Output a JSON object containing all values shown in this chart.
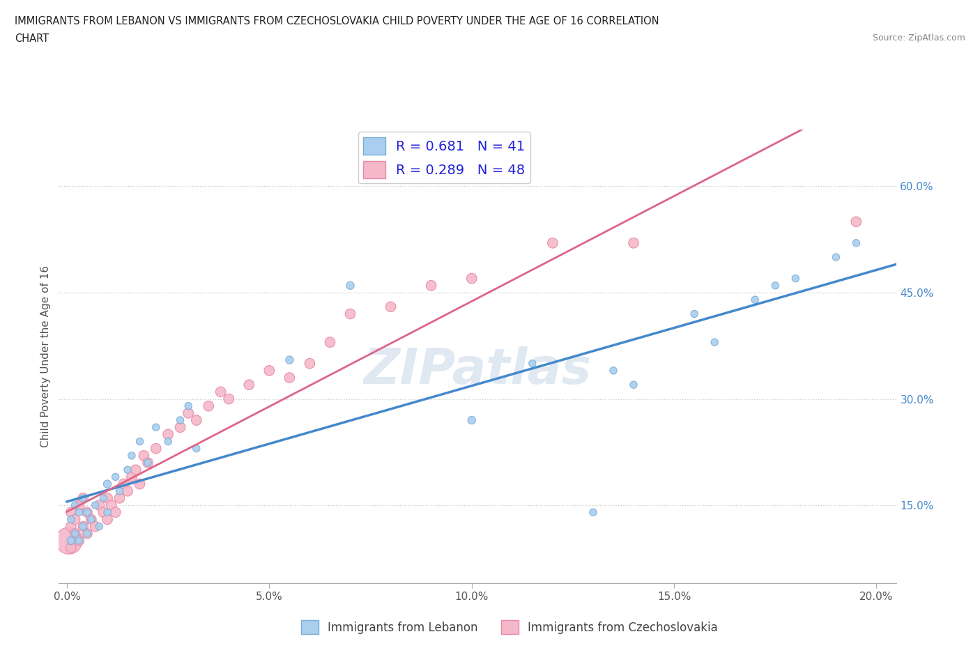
{
  "title_line1": "IMMIGRANTS FROM LEBANON VS IMMIGRANTS FROM CZECHOSLOVAKIA CHILD POVERTY UNDER THE AGE OF 16 CORRELATION",
  "title_line2": "CHART",
  "source": "Source: ZipAtlas.com",
  "ylabel": "Child Poverty Under the Age of 16",
  "r_lebanon": 0.681,
  "n_lebanon": 41,
  "r_czech": 0.289,
  "n_czech": 48,
  "color_lebanon": "#aacfee",
  "color_czech": "#f5b8c8",
  "edge_lebanon": "#7aadd6",
  "edge_czech": "#e888a8",
  "trend_lebanon": "#4488cc",
  "trend_czech": "#dd6688",
  "trend_dashed": "#ccbbbb",
  "legend_label_lebanon": "Immigrants from Lebanon",
  "legend_label_czech": "Immigrants from Czechoslovakia",
  "xlim": [
    -0.002,
    0.205
  ],
  "ylim": [
    0.04,
    0.68
  ],
  "xticks": [
    0.0,
    0.05,
    0.1,
    0.15,
    0.2
  ],
  "xticklabels": [
    "0.0%",
    "5.0%",
    "10.0%",
    "15.0%",
    "20.0%"
  ],
  "yticks_right": [
    0.15,
    0.3,
    0.45,
    0.6
  ],
  "yticklabels_right": [
    "15.0%",
    "30.0%",
    "45.0%",
    "60.0%"
  ],
  "lebanon_x": [
    0.001,
    0.001,
    0.002,
    0.002,
    0.003,
    0.003,
    0.004,
    0.004,
    0.005,
    0.005,
    0.006,
    0.007,
    0.008,
    0.009,
    0.01,
    0.01,
    0.012,
    0.013,
    0.015,
    0.016,
    0.018,
    0.02,
    0.022,
    0.025,
    0.028,
    0.03,
    0.032,
    0.055,
    0.07,
    0.1,
    0.115,
    0.13,
    0.135,
    0.14,
    0.155,
    0.16,
    0.17,
    0.175,
    0.18,
    0.19,
    0.195
  ],
  "lebanon_y": [
    0.1,
    0.13,
    0.11,
    0.15,
    0.1,
    0.14,
    0.12,
    0.16,
    0.11,
    0.14,
    0.13,
    0.15,
    0.12,
    0.16,
    0.14,
    0.18,
    0.19,
    0.17,
    0.2,
    0.22,
    0.24,
    0.21,
    0.26,
    0.24,
    0.27,
    0.29,
    0.23,
    0.355,
    0.46,
    0.27,
    0.35,
    0.14,
    0.34,
    0.32,
    0.42,
    0.38,
    0.44,
    0.46,
    0.47,
    0.5,
    0.52
  ],
  "lebanon_sizes": [
    30,
    25,
    25,
    25,
    25,
    25,
    25,
    25,
    25,
    25,
    25,
    25,
    25,
    25,
    25,
    30,
    25,
    25,
    25,
    25,
    25,
    25,
    25,
    25,
    25,
    25,
    25,
    30,
    30,
    30,
    25,
    25,
    25,
    25,
    25,
    25,
    25,
    25,
    25,
    25,
    25
  ],
  "czech_x": [
    0.0005,
    0.001,
    0.001,
    0.001,
    0.002,
    0.002,
    0.003,
    0.003,
    0.004,
    0.004,
    0.005,
    0.005,
    0.006,
    0.007,
    0.008,
    0.009,
    0.01,
    0.01,
    0.011,
    0.012,
    0.013,
    0.014,
    0.015,
    0.016,
    0.017,
    0.018,
    0.019,
    0.02,
    0.022,
    0.025,
    0.028,
    0.03,
    0.032,
    0.035,
    0.038,
    0.04,
    0.045,
    0.05,
    0.055,
    0.06,
    0.065,
    0.07,
    0.08,
    0.09,
    0.1,
    0.12,
    0.14,
    0.195
  ],
  "czech_y": [
    0.1,
    0.09,
    0.12,
    0.14,
    0.11,
    0.13,
    0.1,
    0.15,
    0.12,
    0.16,
    0.11,
    0.14,
    0.13,
    0.12,
    0.15,
    0.14,
    0.13,
    0.16,
    0.15,
    0.14,
    0.16,
    0.18,
    0.17,
    0.19,
    0.2,
    0.18,
    0.22,
    0.21,
    0.23,
    0.25,
    0.26,
    0.28,
    0.27,
    0.29,
    0.31,
    0.3,
    0.32,
    0.34,
    0.33,
    0.35,
    0.38,
    0.42,
    0.43,
    0.46,
    0.47,
    0.52,
    0.52,
    0.55
  ],
  "czech_sizes": [
    350,
    50,
    50,
    50,
    50,
    50,
    50,
    50,
    50,
    50,
    50,
    50,
    50,
    50,
    50,
    50,
    50,
    50,
    50,
    50,
    50,
    50,
    50,
    50,
    50,
    50,
    50,
    50,
    50,
    50,
    50,
    50,
    50,
    50,
    50,
    50,
    50,
    50,
    50,
    50,
    50,
    50,
    50,
    50,
    50,
    50,
    50,
    50
  ]
}
